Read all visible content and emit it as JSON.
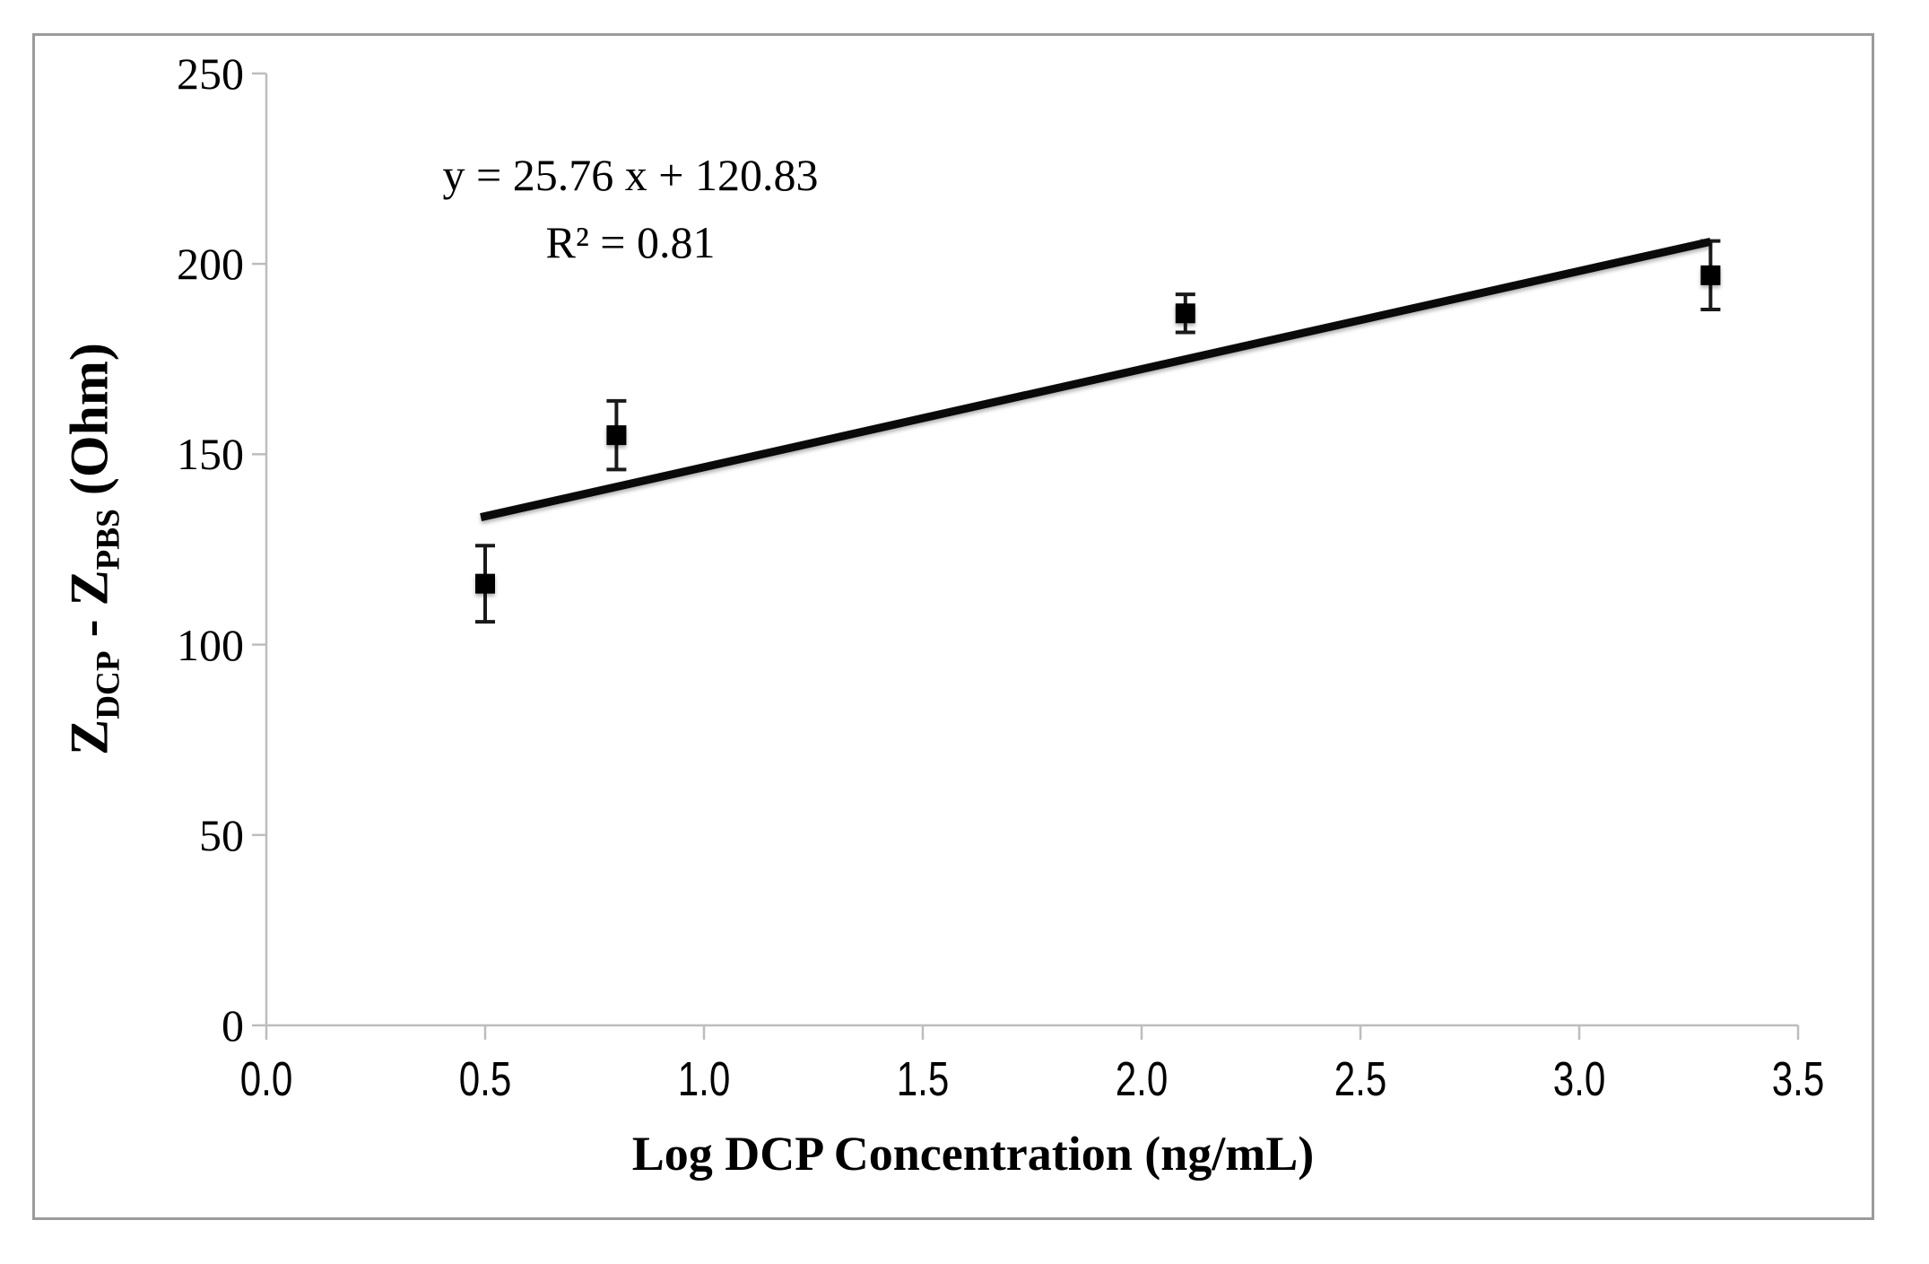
{
  "chart_data": {
    "type": "scatter",
    "title": "",
    "xlabel": "Log DCP Concentration (ng/mL)",
    "ylabel": {
      "base1": "Z",
      "sub1": "DCP",
      "separator": " - ",
      "base2": "Z",
      "sub2": "PBS",
      "unit": " (Ohm)"
    },
    "annotation": {
      "equation": "y = 25.76 x + 120.83",
      "r_squared": "R² = 0.81"
    },
    "x_ticks": [
      {
        "label": "0.0",
        "value": 0.0
      },
      {
        "label": "0.5",
        "value": 0.5
      },
      {
        "label": "1.0",
        "value": 1.0
      },
      {
        "label": "1.5",
        "value": 1.5
      },
      {
        "label": "2.0",
        "value": 2.0
      },
      {
        "label": "2.5",
        "value": 2.5
      },
      {
        "label": "3.0",
        "value": 3.0
      },
      {
        "label": "3.5",
        "value": 3.5
      }
    ],
    "y_ticks": [
      {
        "label": "0",
        "value": 0
      },
      {
        "label": "50",
        "value": 50
      },
      {
        "label": "100",
        "value": 100
      },
      {
        "label": "150",
        "value": 150
      },
      {
        "label": "200",
        "value": 200
      },
      {
        "label": "250",
        "value": 250
      }
    ],
    "xlim": [
      0.0,
      3.5
    ],
    "ylim": [
      0,
      250
    ],
    "grid": false,
    "legend": "none",
    "points": [
      {
        "x": 0.5,
        "y": 116,
        "error": 10
      },
      {
        "x": 0.8,
        "y": 155,
        "error": 9
      },
      {
        "x": 2.1,
        "y": 187,
        "error": 5
      },
      {
        "x": 3.3,
        "y": 197,
        "error": 9
      }
    ],
    "trendline": {
      "slope": 25.76,
      "intercept": 120.83,
      "x_start": 0.49,
      "x_end": 3.3
    },
    "colors": {
      "axis": "#bdbdbd",
      "frame": "#9b9b9b",
      "marker": "#000000",
      "trendline": "#0a0a0a",
      "error_bar": "#1a1a1a",
      "text": "#000000"
    }
  }
}
